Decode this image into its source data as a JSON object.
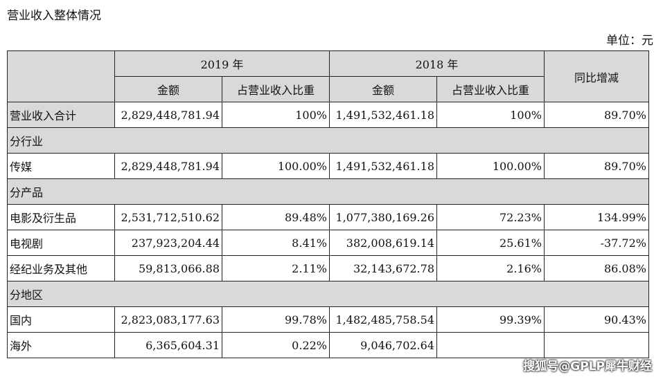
{
  "title": "营业收入整体情况",
  "unit": "单位：元",
  "header": {
    "year_2019": "2019 年",
    "year_2018": "2018 年",
    "yoy": "同比增减",
    "amount": "金额",
    "share": "占营业收入比重"
  },
  "rows": [
    {
      "type": "data",
      "label": "营业收入合计",
      "a2019": "2,829,448,781.94",
      "p2019": "100%",
      "a2018": "1,491,532,461.18",
      "p2018": "100%",
      "yoy": "89.70%"
    },
    {
      "type": "section",
      "label": "分行业"
    },
    {
      "type": "data",
      "label": "传媒",
      "a2019": "2,829,448,781.94",
      "p2019": "100.00%",
      "a2018": "1,491,532,461.18",
      "p2018": "100.00%",
      "yoy": "89.70%"
    },
    {
      "type": "section",
      "label": "分产品"
    },
    {
      "type": "data",
      "label": "电影及衍生品",
      "a2019": "2,531,712,510.62",
      "p2019": "89.48%",
      "a2018": "1,077,380,169.26",
      "p2018": "72.23%",
      "yoy": "134.99%"
    },
    {
      "type": "data",
      "label": "电视剧",
      "a2019": "237,923,204.44",
      "p2019": "8.41%",
      "a2018": "382,008,619.14",
      "p2018": "25.61%",
      "yoy": "-37.72%"
    },
    {
      "type": "data",
      "label": "经纪业务及其他",
      "a2019": "59,813,066.88",
      "p2019": "2.11%",
      "a2018": "32,143,672.78",
      "p2018": "2.16%",
      "yoy": "86.08%"
    },
    {
      "type": "section",
      "label": "分地区"
    },
    {
      "type": "data",
      "label": "国内",
      "a2019": "2,823,083,177.63",
      "p2019": "99.78%",
      "a2018": "1,482,485,758.54",
      "p2018": "99.39%",
      "yoy": "90.43%"
    },
    {
      "type": "data",
      "label": "海外",
      "a2019": "6,365,604.31",
      "p2019": "0.22%",
      "a2018": "9,046,702.64",
      "p2018": "",
      "yoy": ""
    }
  ],
  "watermark": "搜狐号@GPLP犀牛财经"
}
